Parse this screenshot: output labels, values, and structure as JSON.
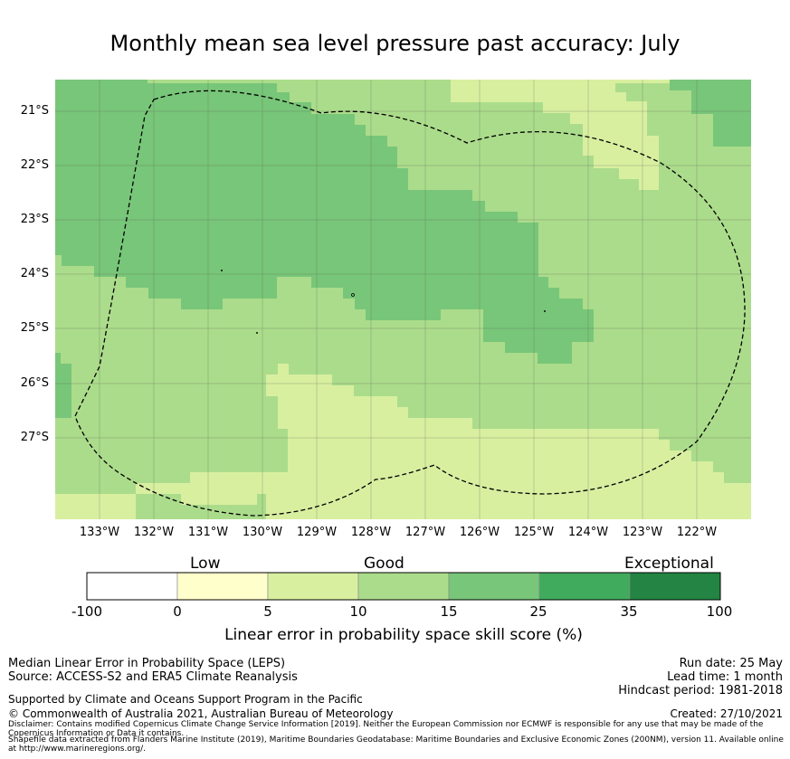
{
  "title": "Monthly mean sea level pressure past accuracy: July",
  "map": {
    "lat_ticks": [
      "21°S",
      "22°S",
      "23°S",
      "24°S",
      "25°S",
      "26°S",
      "27°S"
    ],
    "lon_ticks": [
      "133°W",
      "132°W",
      "131°W",
      "130°W",
      "129°W",
      "128°W",
      "127°W",
      "126°W",
      "125°W",
      "124°W",
      "123°W",
      "122°W"
    ],
    "eez_boundary": "dashed",
    "colors": {
      "band_5_10": "#d8efa0",
      "band_10_15": "#abdc8b",
      "band_15_25": "#78c679",
      "band_25_35": "#41ab5d",
      "band_35_100": "#238443",
      "band_0_5": "#ffffcc",
      "band_neg": "#ffffff"
    }
  },
  "colorbar": {
    "categories": [
      "Low",
      "Good",
      "Exceptional"
    ],
    "ticks": [
      "-100",
      "0",
      "5",
      "10",
      "15",
      "25",
      "35",
      "100"
    ],
    "colors": [
      "#ffffff",
      "#ffffcc",
      "#d8efa0",
      "#abdc8b",
      "#78c679",
      "#41ab5d",
      "#238443"
    ],
    "label": "Linear error in probability space skill score (%)"
  },
  "footer": {
    "left_line1": "Median Linear Error in Probability Space (LEPS)",
    "left_line2": "Source: ACCESS-S2 and ERA5 Climate Reanalysis",
    "support": "Supported by Climate and Oceans Support Program in the Pacific",
    "copyright": "© Commonwealth of Australia 2021, Australian Bureau of Meteorology",
    "run_date": "Run date: 25 May",
    "lead_time": "Lead time: 1 month",
    "hindcast": "Hindcast period: 1981-2018",
    "created": "Created: 27/10/2021",
    "disclaimer": "Disclaimer: Contains modified Copernicus Climate Change Service Information [2019]. Neither the European Commission nor ECMWF is responsible for any use that may be made of the Copernicus Information or Data it contains.",
    "shapefile": "Shapefile data extracted from Flanders Marine Institute (2019), Maritime Boundaries Geodatabase: Maritime Boundaries and Exclusive Economic Zones (200NM), version 11. Available online at http://www.marineregions.org/."
  }
}
